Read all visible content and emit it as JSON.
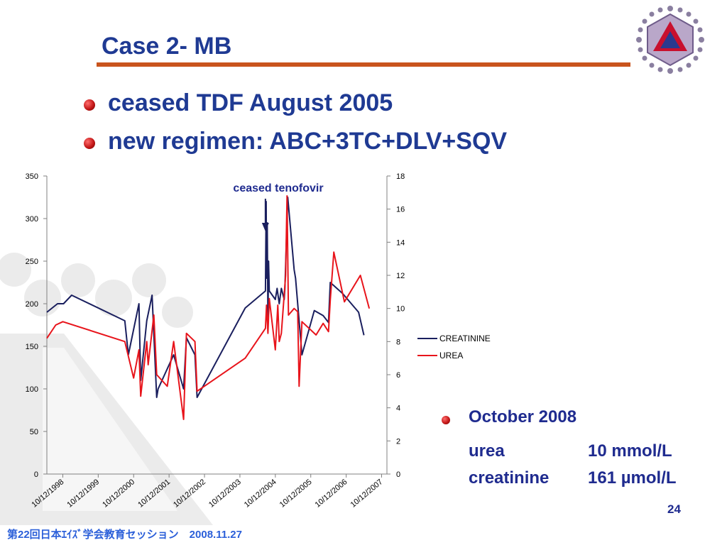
{
  "slide": {
    "title": "Case 2- MB",
    "bullets": [
      "ceased TDF August 2005",
      "new regimen: ABC+3TC+DLV+SQV"
    ],
    "latest": {
      "heading": "October 2008",
      "rows": [
        {
          "label": "urea",
          "value": "10 mmol/L"
        },
        {
          "label": "creatinine",
          "value": "161 µmol/L"
        }
      ]
    },
    "page_number": "24",
    "footer": "第22回日本ｴｲｽﾞ学会教育セッション　2008.11.27"
  },
  "colors": {
    "title": "#1f3a93",
    "rule": "#c9541d",
    "creatinine": "#1a1f5e",
    "urea": "#e8141b"
  },
  "chart_data": {
    "type": "line",
    "annotation": "ceased tenofovir",
    "x_tick_labels": [
      "10/12/1998",
      "10/12/1999",
      "10/12/2000",
      "10/12/2001",
      "10/12/2002",
      "10/12/2003",
      "10/12/2004",
      "10/12/2005",
      "10/12/2006",
      "10/12/2007"
    ],
    "x_range": [
      1998.5,
      2008.1
    ],
    "left_axis": {
      "ylim": [
        0,
        350
      ],
      "ticks": [
        0,
        50,
        100,
        150,
        200,
        250,
        300,
        350
      ]
    },
    "right_axis": {
      "ylim": [
        0,
        18
      ],
      "ticks": [
        0,
        2,
        4,
        6,
        8,
        10,
        12,
        14,
        16,
        18
      ]
    },
    "legend": [
      "CREATININE",
      "UREA"
    ],
    "legend_position": "right",
    "series": [
      {
        "name": "CREATININE",
        "axis": "left",
        "x": [
          1998.5,
          1998.8,
          1998.97,
          1999.2,
          2000.7,
          2000.8,
          2001.1,
          2001.15,
          2001.32,
          2001.47,
          2001.6,
          2001.64,
          2002.08,
          2002.36,
          2002.44,
          2002.68,
          2002.74,
          2004.1,
          2004.67,
          2004.69,
          2004.7,
          2004.72,
          2004.74,
          2004.76,
          2004.78,
          2004.95,
          2005.0,
          2005.06,
          2005.12,
          2005.2,
          2005.22,
          2005.3,
          2005.48,
          2005.52,
          2005.58,
          2005.7,
          2006.05,
          2006.3,
          2006.45,
          2006.5,
          2006.85,
          2007.3,
          2007.45
        ],
        "y": [
          190,
          200,
          200,
          210,
          180,
          140,
          200,
          110,
          180,
          210,
          90,
          100,
          140,
          100,
          160,
          140,
          90,
          195,
          215,
          320,
          230,
          295,
          180,
          250,
          215,
          205,
          218,
          200,
          218,
          205,
          218,
          325,
          240,
          230,
          200,
          140,
          192,
          186,
          178,
          225,
          212,
          190,
          163
        ]
      },
      {
        "name": "UREA",
        "axis": "right",
        "x": [
          1998.5,
          1998.75,
          1998.95,
          2000.7,
          2000.95,
          2001.1,
          2001.15,
          2001.32,
          2001.36,
          2001.52,
          2001.6,
          2001.9,
          2002.08,
          2002.36,
          2002.44,
          2002.68,
          2002.74,
          2004.1,
          2004.67,
          2004.7,
          2004.74,
          2004.78,
          2004.95,
          2005.02,
          2005.06,
          2005.12,
          2005.24,
          2005.28,
          2005.32,
          2005.48,
          2005.58,
          2005.62,
          2005.7,
          2006.1,
          2006.3,
          2006.45,
          2006.5,
          2006.6,
          2006.9,
          2007.35,
          2007.6
        ],
        "y": [
          8.2,
          9.0,
          9.2,
          8.0,
          5.8,
          7.5,
          4.7,
          8.0,
          6.6,
          9.6,
          6.0,
          5.3,
          8.0,
          3.3,
          8.5,
          8.0,
          5.0,
          7.0,
          8.8,
          10.2,
          8.5,
          10.6,
          7.5,
          10.2,
          8.0,
          8.5,
          12.0,
          16.8,
          9.6,
          10.0,
          9.8,
          5.3,
          9.2,
          8.4,
          9.1,
          8.6,
          10.5,
          13.4,
          10.4,
          12.0,
          10.0
        ]
      }
    ]
  }
}
